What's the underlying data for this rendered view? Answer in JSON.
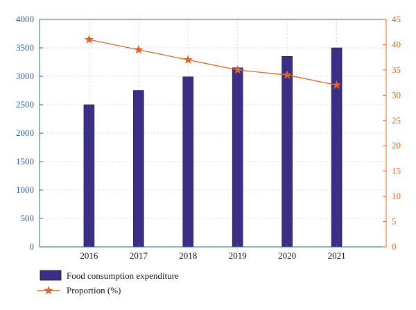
{
  "chart_data": {
    "type": "bar+line",
    "categories": [
      "2016",
      "2017",
      "2018",
      "2019",
      "2020",
      "2021"
    ],
    "series": [
      {
        "name": "Food consumption expenditure",
        "type": "bar",
        "axis": "left",
        "values": [
          2500,
          2750,
          2990,
          3150,
          3350,
          3500
        ],
        "color": "#3a2f85"
      },
      {
        "name": "Proportion (%)",
        "type": "line",
        "marker": "star",
        "axis": "right",
        "values": [
          41,
          39,
          37,
          35,
          34,
          32
        ],
        "color": "#d8672a"
      }
    ],
    "y_left": {
      "lim": [
        0,
        4000
      ],
      "ticks": [
        0,
        500,
        1000,
        1500,
        2000,
        2500,
        3000,
        3500,
        4000
      ],
      "color": "#2f5fa0"
    },
    "y_right": {
      "lim": [
        0,
        45
      ],
      "ticks": [
        0,
        5,
        10,
        15,
        20,
        25,
        30,
        35,
        40,
        45
      ],
      "color": "#d8672a"
    },
    "grid": true,
    "legend": {
      "placement": "bottom-left"
    }
  }
}
